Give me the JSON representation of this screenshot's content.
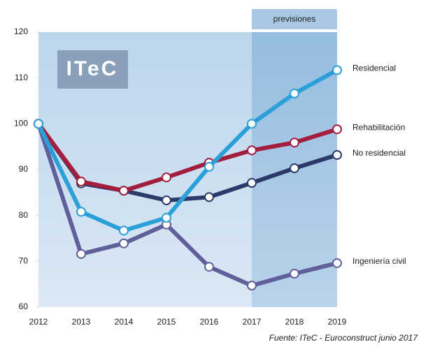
{
  "chart_data": {
    "type": "line",
    "categories": [
      "2012",
      "2013",
      "2014",
      "2015",
      "2016",
      "2017",
      "2018",
      "2019"
    ],
    "series": [
      {
        "name": "Ingeniería civil",
        "color": "#5f5f9a",
        "values": [
          100,
          71.6,
          73.9,
          78,
          68.8,
          64.7,
          67.3,
          69.6
        ]
      },
      {
        "name": "No residencial",
        "color": "#2c3a6b",
        "values": [
          100,
          87,
          85.4,
          83.3,
          84,
          87.1,
          90.3,
          93.2
        ]
      },
      {
        "name": "Rehabilitación",
        "color": "#a31d3c",
        "values": [
          100,
          87.4,
          85.4,
          88.3,
          91.5,
          94.2,
          95.9,
          98.8
        ]
      },
      {
        "name": "Residencial",
        "color": "#2a9fd8",
        "values": [
          100,
          80.8,
          76.7,
          79.5,
          90.6,
          100,
          106.6,
          111.7
        ]
      }
    ],
    "ylim": [
      60,
      120
    ],
    "yticks": [
      60,
      70,
      80,
      90,
      100,
      110,
      120
    ],
    "forecast_start": "2017",
    "forecast_label": "previsiones",
    "logo": "ITeC",
    "source": "Fuente: ITeC - Euroconstruct junio 2017"
  }
}
